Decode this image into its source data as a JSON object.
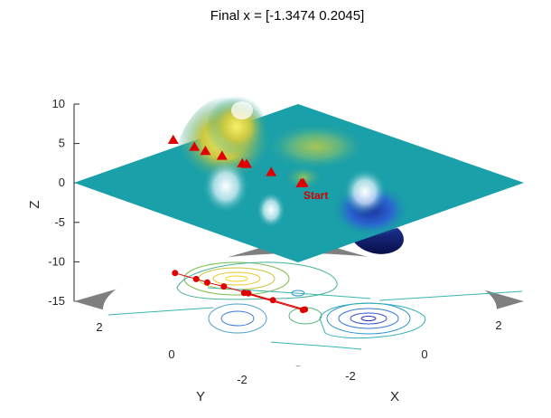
{
  "chart_data": {
    "type": "surface",
    "title": "Final x = [-1.3474 0.2045]",
    "xlabel": "X",
    "ylabel": "Y",
    "zlabel": "Z",
    "x_ticks": [
      "-2",
      "0",
      "2"
    ],
    "y_ticks": [
      "-2",
      "0",
      "2"
    ],
    "z_ticks": [
      "10",
      "5",
      "0",
      "-5",
      "-10",
      "-15"
    ],
    "zlim": [
      -15,
      10
    ],
    "start_label": "Start",
    "colormap": "parula",
    "colors": {
      "surface_base": "#1aa0a8",
      "peak": "#f5e15a",
      "trough": "#0a1a6e",
      "path": "#e00000",
      "floor": "#7f7f7f",
      "disk": "#ffffff"
    },
    "path_points": [
      [
        -2.6,
        0.9
      ],
      [
        -2.3,
        0.6
      ],
      [
        -1.9,
        0.7
      ],
      [
        -2.2,
        -0.1
      ],
      [
        -1.9,
        -0.5
      ],
      [
        -1.6,
        -0.9
      ],
      [
        -1.0,
        -1.2
      ],
      [
        -0.2,
        -0.3
      ],
      [
        -1.3474,
        0.2045
      ]
    ]
  }
}
